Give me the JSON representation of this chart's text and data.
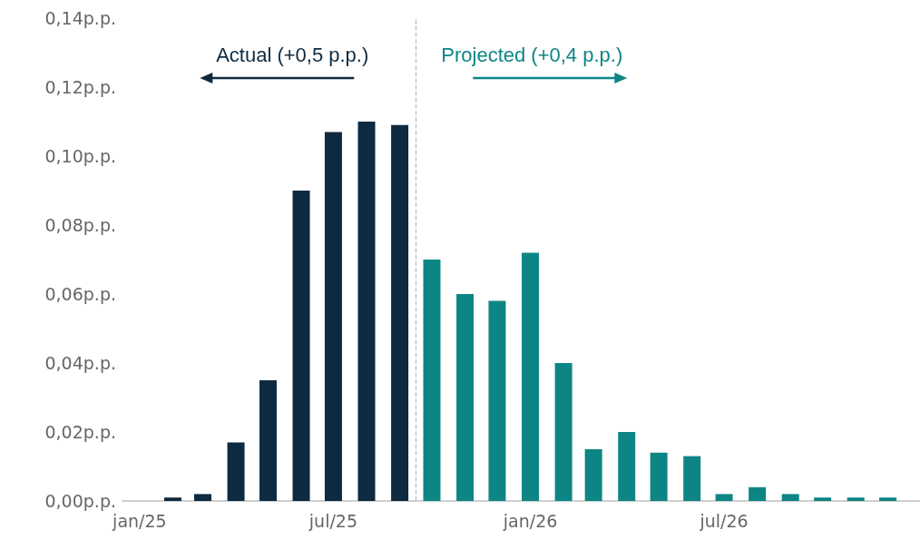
{
  "chart_data": {
    "type": "bar",
    "x": [
      "2025-01",
      "2025-02",
      "2025-03",
      "2025-04",
      "2025-05",
      "2025-06",
      "2025-07",
      "2025-08",
      "2025-09",
      "2025-10",
      "2025-11",
      "2025-12",
      "2026-01",
      "2026-02",
      "2026-03",
      "2026-04",
      "2026-05",
      "2026-06",
      "2026-07",
      "2026-08",
      "2026-09",
      "2026-10",
      "2026-11",
      "2026-12"
    ],
    "series": [
      {
        "color": "#0e2a40",
        "values": [
          0,
          0.001,
          0.002,
          0.017,
          0.035,
          0.09,
          0.107,
          0.11,
          0.109,
          null,
          null,
          null,
          null,
          null,
          null,
          null,
          null,
          null,
          null,
          null,
          null,
          null,
          null,
          null
        ]
      },
      {
        "color": "#0e8585",
        "values": [
          null,
          null,
          null,
          null,
          null,
          null,
          null,
          null,
          null,
          0.07,
          0.06,
          0.058,
          0.072,
          0.04,
          0.015,
          0.02,
          0.014,
          0.013,
          0.002,
          0.004,
          0.002,
          0.001,
          0.001,
          0.001
        ]
      }
    ],
    "xlim": [
      "2024-12-16",
      "2026-12-31"
    ],
    "xticks": [
      {
        "value": "2025-01",
        "label": "jan/25"
      },
      {
        "value": "2025-07",
        "label": "jul/25"
      },
      {
        "value": "2026-01",
        "label": "jan/26"
      },
      {
        "value": "2026-07",
        "label": "jul/26"
      }
    ],
    "ylim": [
      0,
      0.14
    ],
    "yticks": [
      {
        "value": 0,
        "label": "0,00p.p."
      },
      {
        "value": 0.02,
        "label": "0,02p.p."
      },
      {
        "value": 0.04,
        "label": "0,04p.p."
      },
      {
        "value": 0.06,
        "label": "0,06p.p."
      },
      {
        "value": 0.08,
        "label": "0,08p.p."
      },
      {
        "value": 0.1,
        "label": "0,10p.p."
      },
      {
        "value": 0.12,
        "label": "0,12p.p."
      },
      {
        "value": 0.14,
        "label": "0,14p.p."
      }
    ],
    "ref_lines": [
      {
        "axis": "x",
        "value": "2025-09-16",
        "color": "#bbbbbb",
        "line_style": "dashed"
      }
    ],
    "annotations": [
      "Actual (+0,5 p.p.)",
      "Projected (+0,4 p.p.)"
    ],
    "grid": false
  }
}
